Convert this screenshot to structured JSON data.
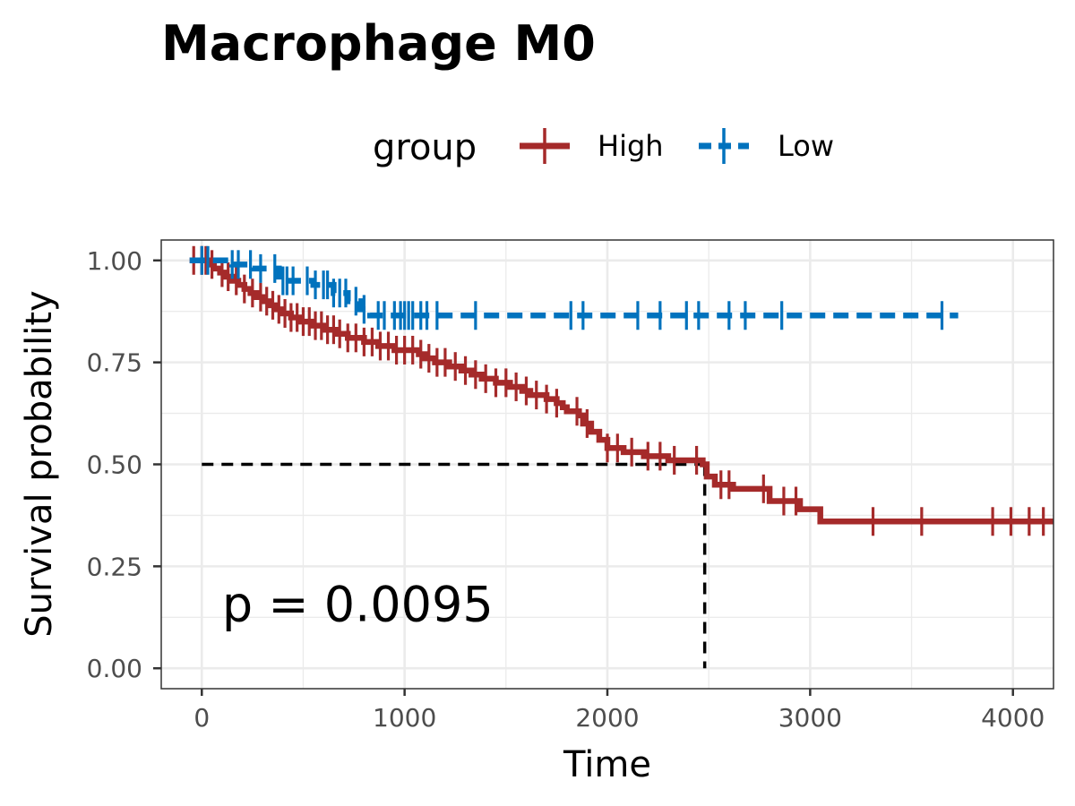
{
  "chart_data": {
    "type": "line",
    "subtype": "kaplan-meier",
    "title": "Macrophage M0",
    "xlabel": "Time",
    "ylabel": "Survival probability",
    "xlim": [
      -200,
      4200
    ],
    "ylim": [
      -0.05,
      1.05
    ],
    "x_ticks": [
      0,
      1000,
      2000,
      3000,
      4000
    ],
    "x_tick_labels": [
      "0",
      "1000",
      "2000",
      "3000",
      "4000"
    ],
    "y_ticks": [
      0,
      0.25,
      0.5,
      0.75,
      1.0
    ],
    "y_tick_labels": [
      "0.00",
      "0.25",
      "0.50",
      "0.75",
      "1.00"
    ],
    "grid": true,
    "legend": {
      "title": "group",
      "position": "top"
    },
    "annotation": {
      "text": "p = 0.0095",
      "x": 100,
      "y": 0.16
    },
    "median_line": {
      "x": 2480,
      "y": 0.5
    },
    "series": [
      {
        "name": "High",
        "color": "#A52A2A",
        "line_style": "solid",
        "steps": [
          [
            -60,
            1.0
          ],
          [
            30,
            0.99
          ],
          [
            60,
            0.98
          ],
          [
            90,
            0.97
          ],
          [
            120,
            0.96
          ],
          [
            150,
            0.95
          ],
          [
            180,
            0.94
          ],
          [
            210,
            0.93
          ],
          [
            240,
            0.92
          ],
          [
            270,
            0.91
          ],
          [
            300,
            0.9
          ],
          [
            330,
            0.89
          ],
          [
            360,
            0.88
          ],
          [
            400,
            0.87
          ],
          [
            440,
            0.86
          ],
          [
            480,
            0.85
          ],
          [
            540,
            0.84
          ],
          [
            600,
            0.83
          ],
          [
            660,
            0.82
          ],
          [
            720,
            0.81
          ],
          [
            800,
            0.8
          ],
          [
            870,
            0.79
          ],
          [
            950,
            0.78
          ],
          [
            1070,
            0.77
          ],
          [
            1100,
            0.76
          ],
          [
            1150,
            0.75
          ],
          [
            1220,
            0.74
          ],
          [
            1280,
            0.73
          ],
          [
            1330,
            0.72
          ],
          [
            1380,
            0.71
          ],
          [
            1450,
            0.7
          ],
          [
            1520,
            0.69
          ],
          [
            1580,
            0.68
          ],
          [
            1620,
            0.67
          ],
          [
            1700,
            0.66
          ],
          [
            1750,
            0.65
          ],
          [
            1780,
            0.64
          ],
          [
            1800,
            0.63
          ],
          [
            1860,
            0.62
          ],
          [
            1880,
            0.6
          ],
          [
            1920,
            0.58
          ],
          [
            1960,
            0.56
          ],
          [
            2000,
            0.54
          ],
          [
            2080,
            0.53
          ],
          [
            2180,
            0.52
          ],
          [
            2300,
            0.51
          ],
          [
            2470,
            0.5
          ],
          [
            2490,
            0.47
          ],
          [
            2530,
            0.45
          ],
          [
            2620,
            0.44
          ],
          [
            2800,
            0.41
          ],
          [
            2950,
            0.39
          ],
          [
            3050,
            0.36
          ],
          [
            4200,
            0.36
          ]
        ],
        "censor_times": [
          -40,
          0,
          20,
          50,
          100,
          130,
          170,
          210,
          250,
          290,
          320,
          350,
          380,
          410,
          440,
          470,
          500,
          530,
          560,
          590,
          620,
          650,
          680,
          720,
          760,
          800,
          840,
          880,
          920,
          960,
          1000,
          1040,
          1080,
          1120,
          1160,
          1200,
          1250,
          1300,
          1350,
          1400,
          1450,
          1500,
          1550,
          1600,
          1650,
          1700,
          1750,
          1850,
          1900,
          2000,
          2050,
          2120,
          2200,
          2260,
          2330,
          2440,
          2560,
          2600,
          2770,
          2870,
          2930,
          3310,
          3550,
          3900,
          3990,
          4080,
          4150
        ]
      },
      {
        "name": "Low",
        "color": "#0072BD",
        "line_style": "dashed",
        "steps": [
          [
            -60,
            1.0
          ],
          [
            150,
            0.99
          ],
          [
            250,
            0.98
          ],
          [
            380,
            0.95
          ],
          [
            550,
            0.94
          ],
          [
            650,
            0.92
          ],
          [
            720,
            0.9
          ],
          [
            780,
            0.88
          ],
          [
            830,
            0.865
          ],
          [
            3730,
            0.865
          ]
        ],
        "censor_times": [
          0,
          30,
          150,
          180,
          240,
          290,
          360,
          400,
          420,
          450,
          520,
          560,
          600,
          620,
          650,
          680,
          710,
          760,
          800,
          870,
          900,
          950,
          980,
          1000,
          1020,
          1040,
          1080,
          1110,
          1160,
          1350,
          1820,
          1880,
          2150,
          2260,
          2390,
          2450,
          2600,
          2680,
          2860,
          3650
        ]
      }
    ]
  }
}
